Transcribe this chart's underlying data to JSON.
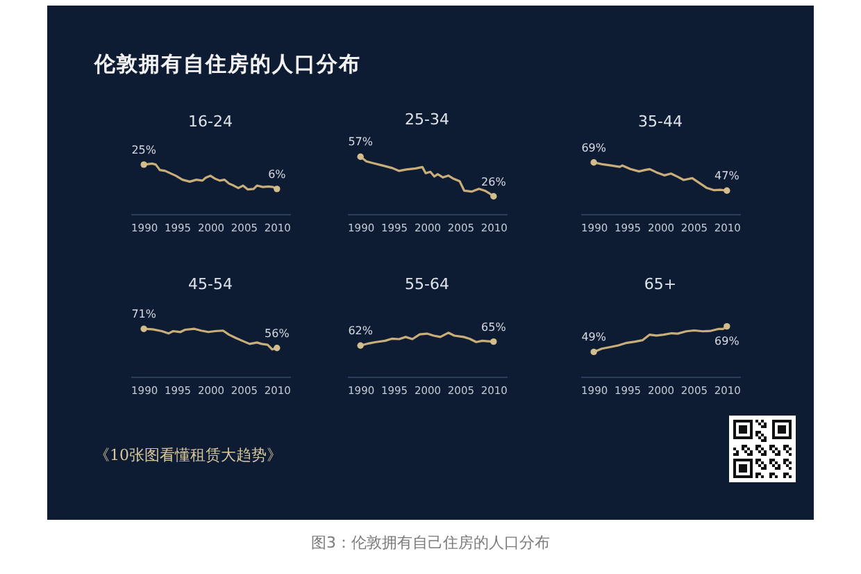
{
  "chart_data": [
    {
      "type": "other",
      "title": "伦敦拥有自住房的人口分布",
      "annotations": [
        "《10张图看懂租赁大趋势》",
        "图3：伦敦拥有自己住房的人口分布"
      ]
    },
    {
      "type": "line",
      "title": "16-24",
      "xlim": [
        1988,
        2012
      ],
      "xticks": [
        1990,
        1995,
        2000,
        2005,
        2010
      ],
      "tick_labels": "x",
      "series": [
        {
          "type": "line",
          "color": "#c9ae7a",
          "x": [
            1990,
            1991.3,
            1991.8,
            1992.4,
            1993.2,
            1994,
            1994.8,
            1995.8,
            1996.9,
            1997.9,
            1998.8,
            1999.3,
            2000,
            2000.7,
            2001.4,
            2002.1,
            2002.8,
            2003.5,
            2004.2,
            2004.9,
            2005.6,
            2006.5,
            2007,
            2007.9,
            2008.7,
            2009.4,
            2010
          ],
          "values": [
            25,
            25.8,
            25,
            20.8,
            20.1,
            18.2,
            16.3,
            13.2,
            11.7,
            13.2,
            12.5,
            14.7,
            16.3,
            14,
            12.5,
            13.2,
            10.2,
            8.6,
            6.7,
            8.6,
            5.6,
            6,
            8.6,
            7.5,
            7.9,
            7.5,
            6
          ]
        },
        {
          "type": "scatter",
          "marker": "circle",
          "color": "#d4bd8c",
          "x": [
            1990,
            2010
          ],
          "values": [
            25,
            6
          ],
          "value_labels": [
            "25%",
            "6%"
          ]
        }
      ]
    },
    {
      "type": "line",
      "title": "25-34",
      "xlim": [
        1988,
        2012
      ],
      "xticks": [
        1990,
        1995,
        2000,
        2005,
        2010
      ],
      "tick_labels": "x",
      "series": [
        {
          "type": "line",
          "color": "#c9ae7a",
          "x": [
            1990,
            1990.9,
            1992,
            1993.4,
            1994.8,
            1995.8,
            1996.9,
            1998.3,
            1999.3,
            1999.8,
            2000.5,
            2001.1,
            2001.6,
            2002.4,
            2003.2,
            2004,
            2004.9,
            2005.6,
            2006.7,
            2007.8,
            2008.7,
            2009.4,
            2010
          ],
          "values": [
            57,
            53.3,
            51.8,
            50,
            48.1,
            45.9,
            47,
            47.8,
            48.9,
            44.1,
            45.2,
            41.5,
            43.3,
            40.8,
            42.2,
            39.7,
            37.8,
            30.4,
            29.7,
            31.9,
            30.4,
            28.2,
            26
          ]
        },
        {
          "type": "scatter",
          "marker": "circle",
          "color": "#d4bd8c",
          "x": [
            1990,
            2010
          ],
          "values": [
            57,
            26
          ],
          "value_labels": [
            "57%",
            "26%"
          ]
        }
      ]
    },
    {
      "type": "line",
      "title": "35-44",
      "xlim": [
        1988,
        2012
      ],
      "xticks": [
        1990,
        1995,
        2000,
        2005,
        2010
      ],
      "tick_labels": "x",
      "series": [
        {
          "type": "line",
          "color": "#c9ae7a",
          "x": [
            1990,
            1991.3,
            1992.6,
            1993.9,
            1994.3,
            1995.5,
            1996.8,
            1997.7,
            1998.4,
            1999.4,
            2000.6,
            2001.6,
            2002.6,
            2003.5,
            2004.8,
            2005.8,
            2007,
            2008.1,
            2009,
            2010
          ],
          "values": [
            69,
            67.6,
            66.6,
            65.5,
            66.6,
            63.8,
            62,
            63.1,
            63.8,
            61.3,
            58.9,
            60.3,
            57.8,
            55.3,
            56.7,
            53.2,
            49,
            47.3,
            47.6,
            47
          ]
        },
        {
          "type": "scatter",
          "marker": "circle",
          "color": "#d4bd8c",
          "x": [
            1990,
            2010
          ],
          "values": [
            69,
            47
          ],
          "value_labels": [
            "69%",
            "47%"
          ]
        }
      ]
    },
    {
      "type": "line",
      "title": "45-54",
      "xlim": [
        1988,
        2012
      ],
      "xticks": [
        1990,
        1995,
        2000,
        2005,
        2010
      ],
      "tick_labels": "x",
      "series": [
        {
          "type": "line",
          "color": "#c9ae7a",
          "x": [
            1990,
            1991.3,
            1992.7,
            1993.7,
            1994.4,
            1995.5,
            1996.2,
            1997.6,
            1998.6,
            1999.7,
            2000.7,
            2001.9,
            2002.8,
            2003.8,
            2004.9,
            2005.9,
            2007,
            2007.7,
            2008.6,
            2009.3,
            2010
          ],
          "values": [
            71,
            70.6,
            69.2,
            67.4,
            69.2,
            68.5,
            70.3,
            71,
            69.6,
            68.5,
            69.2,
            69.6,
            66.4,
            63.9,
            61.4,
            59.2,
            60.3,
            59.2,
            58.5,
            54.9,
            56
          ]
        },
        {
          "type": "scatter",
          "marker": "circle",
          "color": "#d4bd8c",
          "x": [
            1990,
            2010
          ],
          "values": [
            71,
            56
          ],
          "value_labels": [
            "71%",
            "56%"
          ]
        }
      ]
    },
    {
      "type": "line",
      "title": "55-64",
      "xlim": [
        1988,
        2012
      ],
      "xticks": [
        1990,
        1995,
        2000,
        2005,
        2010
      ],
      "tick_labels": "x",
      "series": [
        {
          "type": "line",
          "color": "#c9ae7a",
          "x": [
            1990,
            1991.3,
            1992.3,
            1993.7,
            1994.7,
            1995.8,
            1996.8,
            1997.8,
            1998.9,
            2000,
            2001,
            2002,
            2003.2,
            2004.1,
            2005.5,
            2006.4,
            2007.4,
            2008.3,
            2009.2,
            2010
          ],
          "values": [
            62,
            63.7,
            64.7,
            65.7,
            67.3,
            67,
            68.7,
            67,
            70.7,
            71.3,
            69.7,
            68.7,
            72,
            69.7,
            68.7,
            67.3,
            64.7,
            65.7,
            65.3,
            65
          ]
        },
        {
          "type": "scatter",
          "marker": "circle",
          "color": "#d4bd8c",
          "x": [
            1990,
            2010
          ],
          "values": [
            62,
            65
          ],
          "value_labels": [
            "62%",
            "65%"
          ]
        }
      ]
    },
    {
      "type": "line",
      "title": "65+",
      "xlim": [
        1988,
        2012
      ],
      "xticks": [
        1990,
        1995,
        2000,
        2005,
        2010
      ],
      "tick_labels": "x",
      "series": [
        {
          "type": "line",
          "color": "#c9ae7a",
          "x": [
            1990,
            1991.2,
            1992.3,
            1993.7,
            1994.8,
            1996.2,
            1997.3,
            1998.4,
            1999.4,
            2000.5,
            2001.7,
            2002.6,
            2003.9,
            2005.1,
            2006.4,
            2007.6,
            2008.7,
            2009.4,
            2010
          ],
          "values": [
            49,
            51.5,
            52.6,
            54.1,
            55.9,
            57,
            58.1,
            62.5,
            61.8,
            62.5,
            63.6,
            63.3,
            65.1,
            65.8,
            65.1,
            65.5,
            66.9,
            66.9,
            69
          ]
        },
        {
          "type": "scatter",
          "marker": "circle",
          "color": "#d4bd8c",
          "x": [
            1990,
            2010
          ],
          "values": [
            49,
            69
          ],
          "value_labels": [
            "49%",
            "69%"
          ]
        }
      ]
    }
  ]
}
